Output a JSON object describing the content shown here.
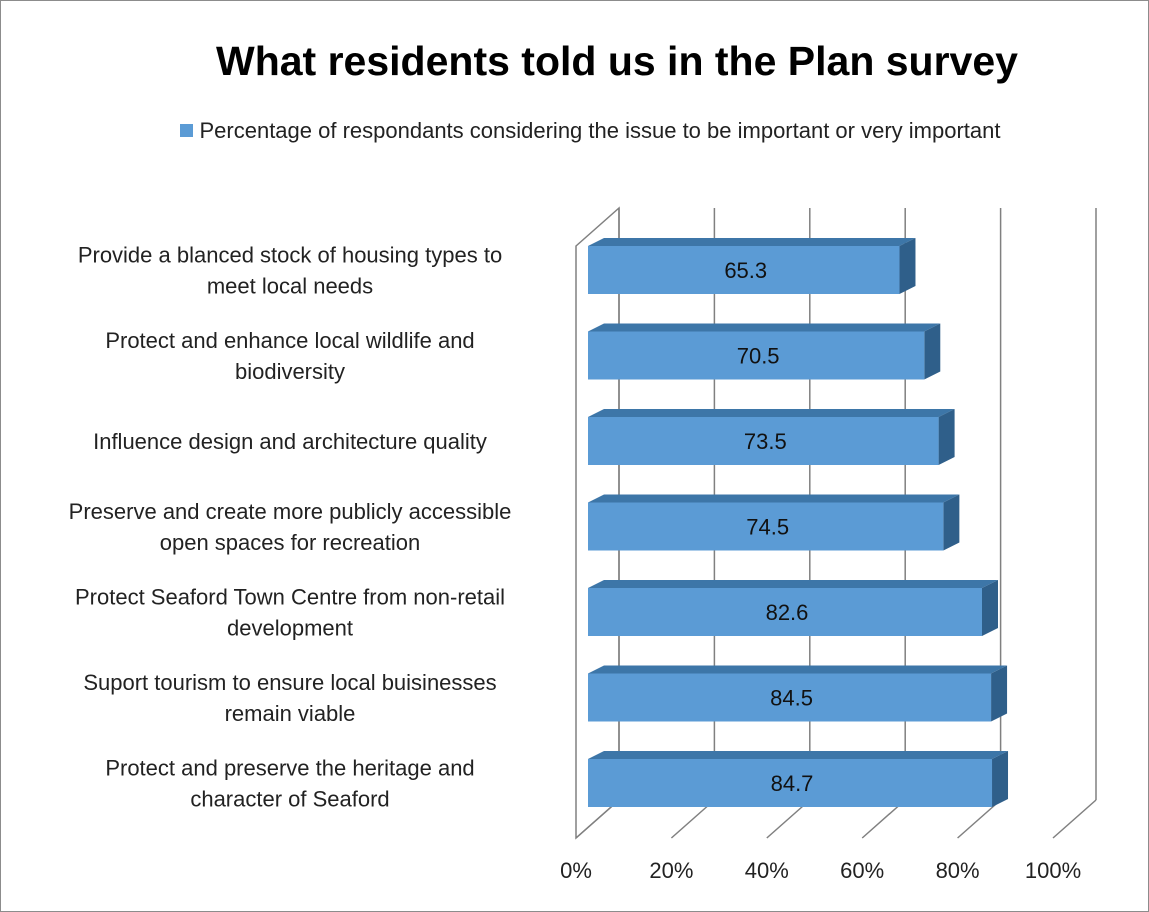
{
  "chart_data": {
    "type": "bar",
    "orientation": "horizontal",
    "style": "3d",
    "title": "What residents told us in the Plan survey",
    "legend_position": "top",
    "categories": [
      "Provide a blanced stock of housing types to meet local needs",
      "Protect and enhance local wildlife and biodiversity",
      "Influence design and architecture quality",
      "Preserve and create more publicly accessible open spaces for recreation",
      "Protect Seaford Town Centre from non-retail development",
      "Suport tourism to ensure local buisinesses remain viable",
      "Protect and preserve the heritage and character of Seaford"
    ],
    "series": [
      {
        "name": "Percentage of respondants considering the issue to be important or very important",
        "values": [
          65.3,
          70.5,
          73.5,
          74.5,
          82.6,
          84.5,
          84.7
        ],
        "color": "#5b9bd5"
      }
    ],
    "data_labels": [
      "65.3",
      "70.5",
      "73.5",
      "74.5",
      "82.6",
      "84.5",
      "84.7"
    ],
    "xlim": [
      0,
      100
    ],
    "x_ticks": [
      0,
      20,
      40,
      60,
      80,
      100
    ],
    "x_tick_labels": [
      "0%",
      "20%",
      "40%",
      "60%",
      "80%",
      "100%"
    ],
    "grid": true,
    "colors": {
      "bar_front": "#5b9bd5",
      "bar_top": "#3d76a8",
      "bar_side": "#2f5f8a",
      "gridline": "#808080"
    }
  }
}
